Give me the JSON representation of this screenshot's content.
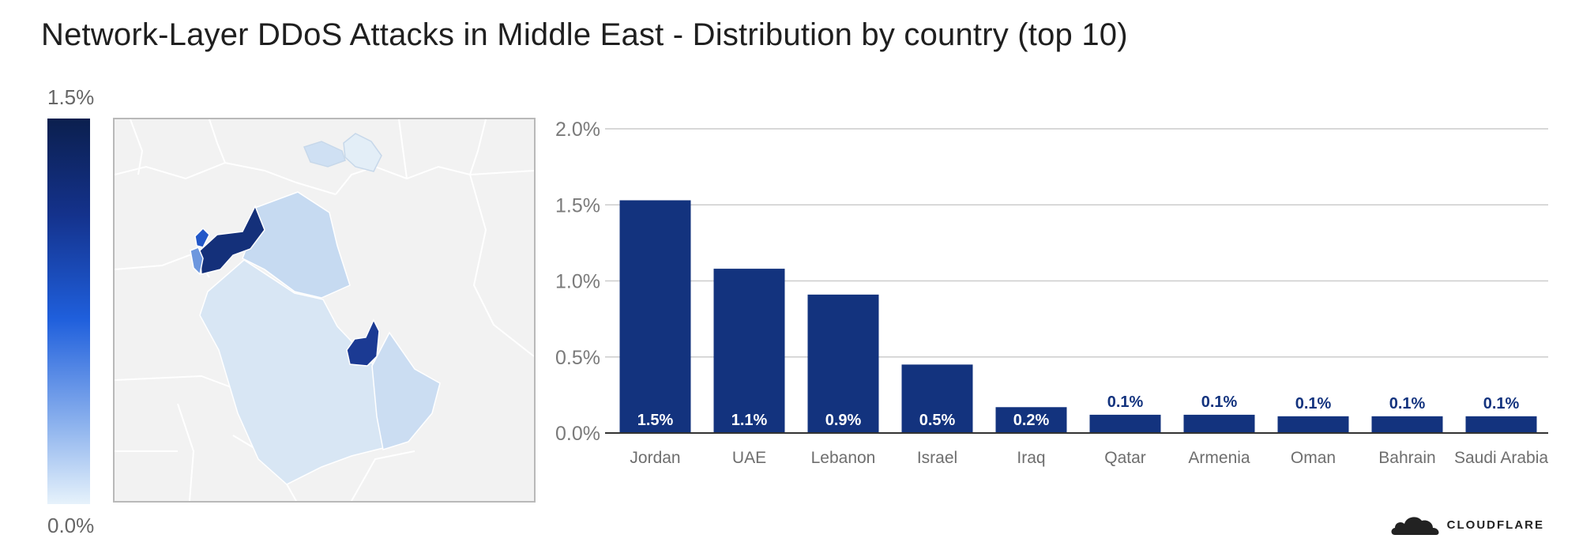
{
  "title": "Network-Layer DDoS Attacks in Middle East - Distribution by country (top 10)",
  "legend": {
    "max_label": "1.5%",
    "min_label": "0.0%"
  },
  "brand": {
    "name": "CLOUDFLARE",
    "icon": "cloud-icon"
  },
  "colors": {
    "bar": "#13337e",
    "grid": "#cccccc",
    "axis": "#333333",
    "label_inside": "#ffffff"
  },
  "map": {
    "regions": [
      {
        "name": "Jordan",
        "value": 1.5
      },
      {
        "name": "UAE",
        "value": 1.1
      },
      {
        "name": "Lebanon",
        "value": 0.9
      },
      {
        "name": "Israel",
        "value": 0.5
      },
      {
        "name": "Iraq",
        "value": 0.2
      },
      {
        "name": "Saudi Arabia",
        "value": 0.1
      },
      {
        "name": "Oman",
        "value": 0.1
      },
      {
        "name": "Armenia",
        "value": 0.1
      }
    ]
  },
  "chart_data": {
    "type": "bar",
    "title": "Network-Layer DDoS Attacks in Middle East - Distribution by country (top 10)",
    "categories": [
      "Jordan",
      "UAE",
      "Lebanon",
      "Israel",
      "Iraq",
      "Qatar",
      "Armenia",
      "Oman",
      "Bahrain",
      "Saudi Arabia"
    ],
    "values": [
      1.53,
      1.08,
      0.91,
      0.45,
      0.17,
      0.12,
      0.12,
      0.11,
      0.11,
      0.11
    ],
    "data_labels": [
      "1.5%",
      "1.1%",
      "0.9%",
      "0.5%",
      "0.2%",
      "0.1%",
      "0.1%",
      "0.1%",
      "0.1%",
      "0.1%"
    ],
    "yticks": [
      "0.0%",
      "0.5%",
      "1.0%",
      "1.5%",
      "2.0%"
    ],
    "ylim": [
      0,
      2.0
    ],
    "grid": true,
    "xlabel": "",
    "ylabel": ""
  }
}
